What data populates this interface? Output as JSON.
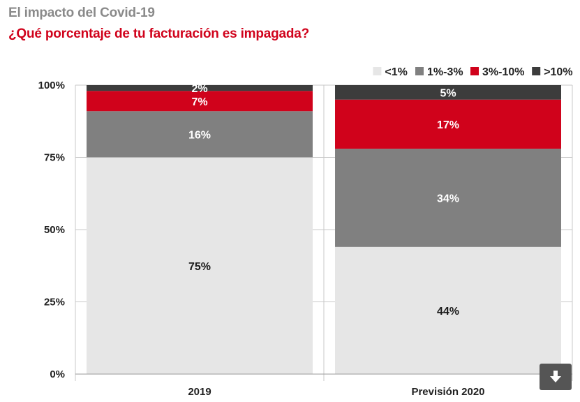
{
  "header": {
    "title": "El impacto del Covid-19",
    "subtitle": "¿Qué porcentaje de tu facturación es impagada?"
  },
  "chart_data": {
    "type": "bar",
    "stacked": true,
    "categories": [
      "2019",
      "Previsión 2020"
    ],
    "series": [
      {
        "name": "<1%",
        "values": [
          75,
          44
        ],
        "labels": [
          "75%",
          "44%"
        ],
        "color": "#e6e6e6",
        "label_color": "#1a1a1a"
      },
      {
        "name": "1%-3%",
        "values": [
          16,
          34
        ],
        "labels": [
          "16%",
          "34%"
        ],
        "color": "#808080",
        "label_color": "#ffffff"
      },
      {
        "name": "3%-10%",
        "values": [
          7,
          17
        ],
        "labels": [
          "7%",
          "17%"
        ],
        "color": "#d0021b",
        "label_color": "#ffffff"
      },
      {
        "name": ">10%",
        "values": [
          2,
          5
        ],
        "labels": [
          "2%",
          "5%"
        ],
        "color": "#3c3c3c",
        "label_color": "#ffffff"
      }
    ],
    "y_ticks": [
      0,
      25,
      50,
      75,
      100
    ],
    "y_tick_labels": [
      "0%",
      "25%",
      "50%",
      "75%",
      "100%"
    ],
    "ylim": [
      0,
      100
    ],
    "grid": true,
    "legend_position": "top-right"
  },
  "controls": {
    "download_icon": "download-arrow-icon"
  }
}
